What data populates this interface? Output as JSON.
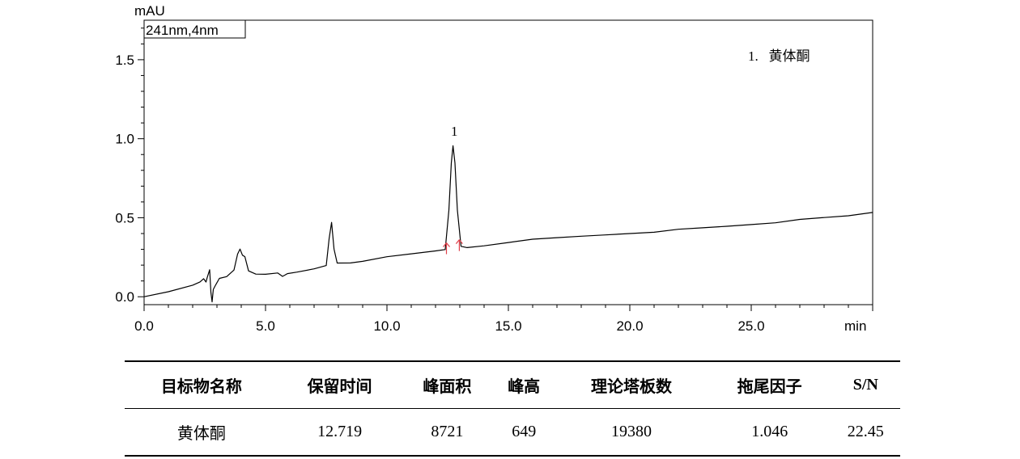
{
  "chart_data": {
    "type": "line",
    "ylabel": "mAU",
    "xlabel": "min",
    "channel_label": "241nm,4nm",
    "legend_entry": "1.   黄体酮",
    "peak_label": "1",
    "xlim": [
      0,
      30
    ],
    "ylim": [
      -0.05,
      1.75
    ],
    "x_ticks": [
      0,
      5,
      10,
      15,
      20,
      25
    ],
    "x_tick_labels": [
      "0.0",
      "5.0",
      "10.0",
      "15.0",
      "20.0",
      "25.0"
    ],
    "y_ticks": [
      0,
      0.5,
      1.0,
      1.5
    ],
    "y_tick_labels": [
      "0.0",
      "0.5",
      "1.0",
      "1.5"
    ],
    "series": [
      {
        "x": [
          0,
          1,
          2,
          2.3,
          2.45,
          2.55,
          2.6,
          2.7,
          2.75,
          2.8,
          2.85,
          2.95,
          3.1,
          3.4,
          3.7,
          3.85,
          3.95,
          4.05,
          4.15,
          4.3,
          4.6,
          5.0,
          5.5,
          5.7,
          5.8,
          5.9,
          6.3,
          7.0,
          7.5,
          7.62,
          7.72,
          7.82,
          7.95,
          8.5,
          9,
          10,
          11,
          12,
          12.4,
          12.55,
          12.65,
          12.72,
          12.8,
          12.9,
          13.05,
          13.3,
          14,
          15,
          16,
          17,
          18,
          19,
          20,
          21,
          22,
          23,
          24,
          25,
          26,
          27,
          28,
          29,
          30
        ],
        "y": [
          0,
          0.03,
          0.07,
          0.09,
          0.11,
          0.09,
          0.12,
          0.17,
          0.03,
          -0.03,
          0.05,
          0.08,
          0.12,
          0.13,
          0.17,
          0.27,
          0.3,
          0.26,
          0.25,
          0.16,
          0.14,
          0.14,
          0.15,
          0.13,
          0.14,
          0.15,
          0.16,
          0.18,
          0.2,
          0.37,
          0.47,
          0.3,
          0.21,
          0.21,
          0.22,
          0.25,
          0.27,
          0.29,
          0.3,
          0.55,
          0.85,
          0.96,
          0.85,
          0.55,
          0.32,
          0.31,
          0.32,
          0.34,
          0.36,
          0.37,
          0.38,
          0.39,
          0.4,
          0.41,
          0.43,
          0.44,
          0.45,
          0.46,
          0.47,
          0.49,
          0.5,
          0.51,
          0.53
        ]
      }
    ],
    "integration_marks": [
      {
        "x": 12.45,
        "y": 0.3,
        "color": "#e0404a"
      },
      {
        "x": 12.98,
        "y": 0.32,
        "color": "#e0404a"
      }
    ],
    "line_color": "#000000"
  },
  "table": {
    "headers": [
      "目标物名称",
      "保留时间",
      "峰面积",
      "峰高",
      "理论塔板数",
      "拖尾因子",
      "S/N"
    ],
    "rows": [
      [
        "黄体酮",
        "12.719",
        "8721",
        "649",
        "19380",
        "1.046",
        "22.45"
      ]
    ]
  }
}
